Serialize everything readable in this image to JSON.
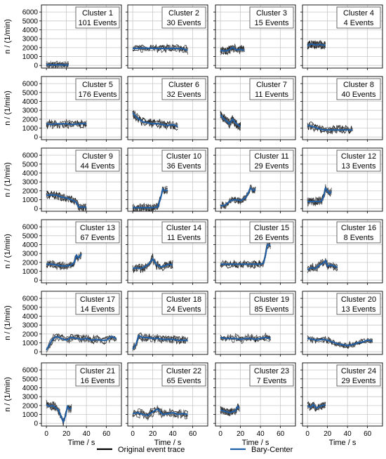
{
  "figure": {
    "ylabel": "n / (1/min)",
    "xlabel": "Time / s",
    "legend": [
      {
        "name": "Original event trace",
        "color": "#000000"
      },
      {
        "name": "Bary-Center",
        "color": "#1f5fa8"
      }
    ]
  },
  "colors": {
    "trace": "#000000",
    "bary": "#1f5fa8",
    "grid": "#c8c8c8"
  },
  "chart_data": [
    {
      "type": "line",
      "title": "Cluster 1",
      "subtitle": "101 Events",
      "xlim": [
        -5,
        75
      ],
      "ylim": [
        -300,
        6800
      ],
      "series": [
        {
          "name": "Bary-Center",
          "x": [
            0,
            5,
            10,
            15,
            20,
            22
          ],
          "y": [
            80,
            60,
            70,
            60,
            50,
            40
          ]
        }
      ]
    },
    {
      "type": "line",
      "title": "Cluster 2",
      "subtitle": "30 Events",
      "xlim": [
        -5,
        75
      ],
      "ylim": [
        -300,
        6800
      ],
      "series": [
        {
          "name": "Bary-Center",
          "x": [
            0,
            10,
            20,
            30,
            40,
            50,
            55
          ],
          "y": [
            1900,
            1950,
            1920,
            1900,
            1920,
            1880,
            1700
          ]
        }
      ]
    },
    {
      "type": "line",
      "title": "Cluster 3",
      "subtitle": "15 Events",
      "xlim": [
        -5,
        75
      ],
      "ylim": [
        -300,
        6800
      ],
      "series": [
        {
          "name": "Bary-Center",
          "x": [
            0,
            4,
            8,
            12,
            16,
            20,
            24
          ],
          "y": [
            1700,
            1600,
            1700,
            2000,
            1750,
            1800,
            1700
          ]
        }
      ]
    },
    {
      "type": "line",
      "title": "Cluster 4",
      "subtitle": "4 Events",
      "xlim": [
        -5,
        75
      ],
      "ylim": [
        -300,
        6800
      ],
      "series": [
        {
          "name": "Bary-Center",
          "x": [
            0,
            3,
            6,
            9,
            12,
            15,
            18
          ],
          "y": [
            2200,
            2400,
            2350,
            2300,
            2350,
            2300,
            2250
          ]
        }
      ]
    },
    {
      "type": "line",
      "title": "Cluster 5",
      "subtitle": "176 Events",
      "xlim": [
        -5,
        75
      ],
      "ylim": [
        -300,
        6800
      ],
      "series": [
        {
          "name": "Bary-Center",
          "x": [
            0,
            5,
            10,
            15,
            20,
            25,
            30,
            35,
            40
          ],
          "y": [
            1500,
            1400,
            1500,
            1450,
            1500,
            1400,
            1450,
            1500,
            1500
          ]
        }
      ]
    },
    {
      "type": "line",
      "title": "Cluster 6",
      "subtitle": "32 Events",
      "xlim": [
        -5,
        75
      ],
      "ylim": [
        -300,
        6800
      ],
      "series": [
        {
          "name": "Bary-Center",
          "x": [
            0,
            5,
            10,
            15,
            20,
            25,
            30,
            35,
            40,
            45
          ],
          "y": [
            2700,
            2100,
            1700,
            1600,
            1500,
            1500,
            1400,
            1300,
            1400,
            1200
          ]
        }
      ]
    },
    {
      "type": "line",
      "title": "Cluster 7",
      "subtitle": "11 Events",
      "xlim": [
        -5,
        75
      ],
      "ylim": [
        -300,
        6800
      ],
      "series": [
        {
          "name": "Bary-Center",
          "x": [
            0,
            3,
            6,
            9,
            12,
            15,
            18,
            20
          ],
          "y": [
            2500,
            2100,
            1800,
            1500,
            2000,
            1600,
            1300,
            1200
          ]
        }
      ]
    },
    {
      "type": "line",
      "title": "Cluster 8",
      "subtitle": "40 Events",
      "xlim": [
        -5,
        75
      ],
      "ylim": [
        -300,
        6800
      ],
      "series": [
        {
          "name": "Bary-Center",
          "x": [
            0,
            4,
            8,
            12,
            16,
            20,
            30,
            40,
            45
          ],
          "y": [
            1300,
            1200,
            1100,
            900,
            800,
            800,
            800,
            800,
            800
          ]
        }
      ]
    },
    {
      "type": "line",
      "title": "Cluster 9",
      "subtitle": "44 Events",
      "xlim": [
        -5,
        75
      ],
      "ylim": [
        -300,
        6800
      ],
      "series": [
        {
          "name": "Bary-Center",
          "x": [
            0,
            5,
            10,
            15,
            20,
            25,
            30,
            32,
            35,
            40
          ],
          "y": [
            1500,
            1550,
            1500,
            1300,
            1200,
            1000,
            700,
            200,
            150,
            150
          ]
        }
      ]
    },
    {
      "type": "line",
      "title": "Cluster 10",
      "subtitle": "36 Events",
      "xlim": [
        -5,
        75
      ],
      "ylim": [
        -300,
        6800
      ],
      "series": [
        {
          "name": "Bary-Center",
          "x": [
            0,
            10,
            20,
            25,
            28,
            30,
            32,
            35
          ],
          "y": [
            100,
            100,
            100,
            200,
            1200,
            2200,
            2000,
            2100
          ]
        }
      ]
    },
    {
      "type": "line",
      "title": "Cluster 11",
      "subtitle": "29 Events",
      "xlim": [
        -5,
        75
      ],
      "ylim": [
        -300,
        6800
      ],
      "series": [
        {
          "name": "Bary-Center",
          "x": [
            0,
            5,
            10,
            15,
            20,
            25,
            28,
            30,
            33,
            35
          ],
          "y": [
            300,
            400,
            900,
            1000,
            900,
            1200,
            1800,
            2300,
            2000,
            2200
          ]
        }
      ]
    },
    {
      "type": "line",
      "title": "Cluster 12",
      "subtitle": "13 Events",
      "xlim": [
        -5,
        75
      ],
      "ylim": [
        -300,
        6800
      ],
      "series": [
        {
          "name": "Bary-Center",
          "x": [
            0,
            5,
            10,
            14,
            16,
            18,
            20,
            22,
            24
          ],
          "y": [
            800,
            800,
            800,
            850,
            1300,
            2300,
            2000,
            1700,
            1900
          ]
        }
      ]
    },
    {
      "type": "line",
      "title": "Cluster 13",
      "subtitle": "67 Events",
      "xlim": [
        -5,
        75
      ],
      "ylim": [
        -300,
        6800
      ],
      "series": [
        {
          "name": "Bary-Center",
          "x": [
            0,
            5,
            10,
            15,
            20,
            25,
            28,
            30,
            32,
            35
          ],
          "y": [
            1800,
            1800,
            1700,
            1600,
            1600,
            1700,
            2000,
            2800,
            2500,
            2900
          ]
        }
      ]
    },
    {
      "type": "line",
      "title": "Cluster 14",
      "subtitle": "11 Events",
      "xlim": [
        -5,
        75
      ],
      "ylim": [
        -300,
        6800
      ],
      "series": [
        {
          "name": "Bary-Center",
          "x": [
            0,
            4,
            8,
            12,
            16,
            20,
            24,
            28,
            32,
            36,
            40
          ],
          "y": [
            1300,
            1400,
            1300,
            1500,
            1800,
            2400,
            1700,
            1500,
            1600,
            1800,
            1700
          ]
        }
      ]
    },
    {
      "type": "line",
      "title": "Cluster 15",
      "subtitle": "26 Events",
      "xlim": [
        -5,
        75
      ],
      "ylim": [
        -300,
        6800
      ],
      "series": [
        {
          "name": "Bary-Center",
          "x": [
            0,
            10,
            20,
            30,
            40,
            43,
            45,
            47,
            50
          ],
          "y": [
            1800,
            1800,
            1800,
            1800,
            1800,
            1900,
            2800,
            4000,
            3900
          ]
        }
      ]
    },
    {
      "type": "line",
      "title": "Cluster 16",
      "subtitle": "8 Events",
      "xlim": [
        -5,
        75
      ],
      "ylim": [
        -300,
        6800
      ],
      "series": [
        {
          "name": "Bary-Center",
          "x": [
            0,
            4,
            8,
            12,
            16,
            18,
            20,
            24,
            28,
            30
          ],
          "y": [
            1200,
            1400,
            1300,
            1700,
            1900,
            2200,
            1600,
            1700,
            1500,
            1500
          ]
        }
      ]
    },
    {
      "type": "line",
      "title": "Cluster 17",
      "subtitle": "14 Events",
      "xlim": [
        -5,
        75
      ],
      "ylim": [
        -300,
        6800
      ],
      "series": [
        {
          "name": "Bary-Center",
          "x": [
            0,
            3,
            6,
            10,
            15,
            20,
            25,
            30,
            35,
            40,
            45,
            50,
            55,
            60,
            65,
            70
          ],
          "y": [
            200,
            800,
            1400,
            1700,
            1500,
            1300,
            1600,
            1500,
            1400,
            1500,
            1300,
            1400,
            1300,
            1300,
            1700,
            1500
          ]
        }
      ]
    },
    {
      "type": "line",
      "title": "Cluster 18",
      "subtitle": "24 Events",
      "xlim": [
        -5,
        75
      ],
      "ylim": [
        -300,
        6800
      ],
      "series": [
        {
          "name": "Bary-Center",
          "x": [
            0,
            3,
            6,
            10,
            15,
            20,
            25,
            30,
            35,
            40,
            45,
            50,
            55
          ],
          "y": [
            300,
            800,
            1800,
            1600,
            1600,
            1500,
            1500,
            1400,
            1400,
            1400,
            1300,
            1300,
            1300
          ]
        }
      ]
    },
    {
      "type": "line",
      "title": "Cluster 19",
      "subtitle": "85 Events",
      "xlim": [
        -5,
        75
      ],
      "ylim": [
        -300,
        6800
      ],
      "series": [
        {
          "name": "Bary-Center",
          "x": [
            0,
            5,
            10,
            15,
            20,
            25,
            30,
            35,
            40,
            45,
            50
          ],
          "y": [
            1600,
            1500,
            1500,
            1500,
            1400,
            1500,
            1500,
            1400,
            1500,
            1600,
            1500
          ]
        }
      ]
    },
    {
      "type": "line",
      "title": "Cluster 20",
      "subtitle": "13 Events",
      "xlim": [
        -5,
        75
      ],
      "ylim": [
        -300,
        6800
      ],
      "series": [
        {
          "name": "Bary-Center",
          "x": [
            0,
            5,
            10,
            15,
            20,
            25,
            30,
            35,
            40,
            45,
            50,
            55,
            60,
            65
          ],
          "y": [
            1500,
            1400,
            1300,
            1400,
            1300,
            1100,
            900,
            800,
            700,
            800,
            1000,
            1100,
            1300,
            1200
          ]
        }
      ]
    },
    {
      "type": "line",
      "title": "Cluster 21",
      "subtitle": "16 Events",
      "xlim": [
        -5,
        75
      ],
      "ylim": [
        -300,
        6800
      ],
      "series": [
        {
          "name": "Bary-Center",
          "x": [
            0,
            3,
            6,
            9,
            12,
            15,
            17,
            19,
            21,
            23,
            25
          ],
          "y": [
            2100,
            1900,
            2000,
            1800,
            1500,
            700,
            200,
            800,
            1900,
            1600,
            1700
          ]
        }
      ]
    },
    {
      "type": "line",
      "title": "Cluster 22",
      "subtitle": "65 Events",
      "xlim": [
        -5,
        75
      ],
      "ylim": [
        -300,
        6800
      ],
      "series": [
        {
          "name": "Bary-Center",
          "x": [
            0,
            5,
            10,
            15,
            20,
            25,
            30,
            35,
            40,
            45,
            50,
            55
          ],
          "y": [
            1100,
            1200,
            1000,
            900,
            1300,
            1600,
            1000,
            1100,
            1200,
            1000,
            1100,
            1000
          ]
        }
      ]
    },
    {
      "type": "line",
      "title": "Cluster 23",
      "subtitle": "7 Events",
      "xlim": [
        -5,
        75
      ],
      "ylim": [
        -300,
        6800
      ],
      "series": [
        {
          "name": "Bary-Center",
          "x": [
            0,
            3,
            6,
            9,
            12,
            15,
            17,
            19
          ],
          "y": [
            1500,
            1400,
            1300,
            1200,
            1300,
            1400,
            1900,
            1700
          ]
        }
      ]
    },
    {
      "type": "line",
      "title": "Cluster 24",
      "subtitle": "29 Events",
      "xlim": [
        -5,
        75
      ],
      "ylim": [
        -300,
        6800
      ],
      "series": [
        {
          "name": "Bary-Center",
          "x": [
            0,
            3,
            6,
            9,
            12,
            15,
            18
          ],
          "y": [
            2000,
            1800,
            2100,
            1700,
            1900,
            2000,
            2100
          ]
        }
      ]
    }
  ]
}
